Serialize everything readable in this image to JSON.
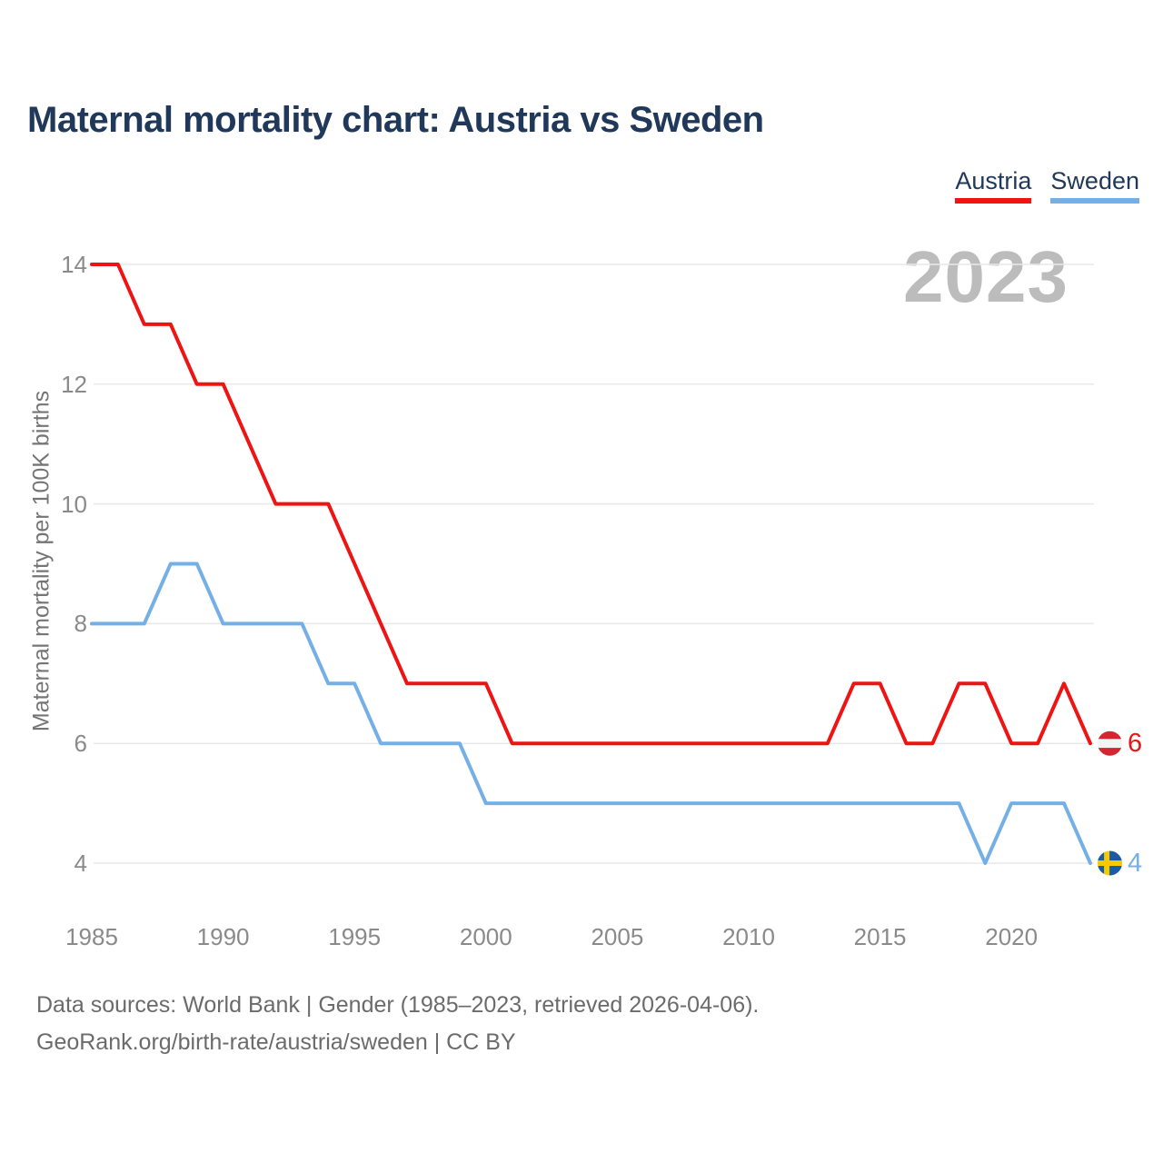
{
  "title": "Maternal mortality chart: Austria vs Sweden",
  "watermark": "2023",
  "legend": [
    {
      "label": "Austria",
      "color": "#ee1414"
    },
    {
      "label": "Sweden",
      "color": "#74b0e6"
    }
  ],
  "colors": {
    "title_text": "#20395a",
    "austria_line": "#ee1414",
    "sweden_line": "#74b0e6",
    "grid": "#e9e9e9",
    "tick_text": "#8a8a8a",
    "watermark_text": "#bcbcbc",
    "footer_text": "#6b6b6b",
    "austria_flag_red": "#d22730",
    "austria_flag_white": "#f4f4f4",
    "sweden_flag_blue": "#1b5aa5",
    "sweden_flag_yellow": "#f7c900"
  },
  "chart_data": {
    "type": "line",
    "title": "Maternal mortality chart: Austria vs Sweden",
    "xlabel": "",
    "ylabel": "Maternal mortality per 100K births",
    "x": [
      1985,
      1986,
      1987,
      1988,
      1989,
      1990,
      1991,
      1992,
      1993,
      1994,
      1995,
      1996,
      1997,
      1998,
      1999,
      2000,
      2001,
      2002,
      2003,
      2004,
      2005,
      2006,
      2007,
      2008,
      2009,
      2010,
      2011,
      2012,
      2013,
      2014,
      2015,
      2016,
      2017,
      2018,
      2019,
      2020,
      2021,
      2022,
      2023
    ],
    "series": [
      {
        "name": "Austria",
        "color": "#ee1414",
        "values": [
          14,
          14,
          13,
          13,
          12,
          12,
          11,
          10,
          10,
          10,
          9,
          8,
          7,
          7,
          7,
          7,
          6,
          6,
          6,
          6,
          6,
          6,
          6,
          6,
          6,
          6,
          6,
          6,
          6,
          7,
          7,
          6,
          6,
          7,
          7,
          6,
          6,
          7,
          6
        ]
      },
      {
        "name": "Sweden",
        "color": "#74b0e6",
        "values": [
          8,
          8,
          8,
          9,
          9,
          8,
          8,
          8,
          8,
          7,
          7,
          6,
          6,
          6,
          6,
          5,
          5,
          5,
          5,
          5,
          5,
          5,
          5,
          5,
          5,
          5,
          5,
          5,
          5,
          5,
          5,
          5,
          5,
          5,
          4,
          5,
          5,
          5,
          4
        ]
      }
    ],
    "x_ticks": [
      1985,
      1990,
      1995,
      2000,
      2005,
      2010,
      2015,
      2020
    ],
    "y_ticks": [
      4,
      6,
      8,
      10,
      12,
      14
    ],
    "xlim": [
      1985,
      2023
    ],
    "ylim": [
      4,
      14
    ],
    "grid": "horizontal",
    "legend_position": "top-right",
    "end_labels": [
      {
        "series": "Austria",
        "value": 6,
        "marker": "austria-flag"
      },
      {
        "series": "Sweden",
        "value": 4,
        "marker": "sweden-flag"
      }
    ]
  },
  "footer": {
    "line1": "Data sources: World Bank | Gender (1985–2023, retrieved 2026-04-06).",
    "line2": "GeoRank.org/birth-rate/austria/sweden | CC BY"
  }
}
